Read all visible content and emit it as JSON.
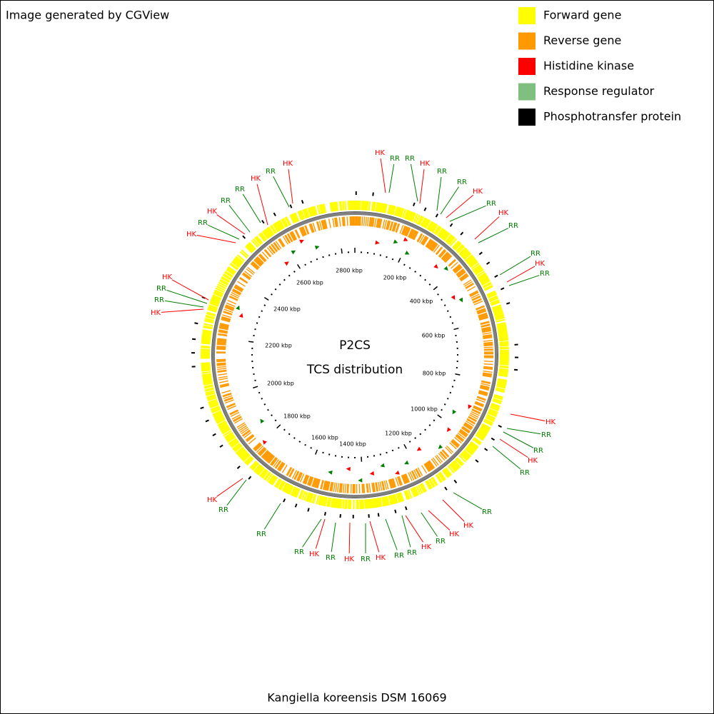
{
  "header": {
    "title": "Image generated by CGView"
  },
  "legend": [
    {
      "label": "Forward gene",
      "color": "#ffff00"
    },
    {
      "label": "Reverse gene",
      "color": "#ff9900"
    },
    {
      "label": "Histidine kinase",
      "color": "#ff0000"
    },
    {
      "label": "Response regulator",
      "color": "#7fbf7f"
    },
    {
      "label": "Phosphotransfer protein",
      "color": "#000000"
    }
  ],
  "center": {
    "title": "P2CS",
    "subtitle": "TCS distribution"
  },
  "scale_labels": [
    "200 kbp",
    "400 kbp",
    "600 kbp",
    "800 kbp",
    "1000 kbp",
    "1200 kbp",
    "1400 kbp",
    "1600 kbp",
    "1800 kbp",
    "2000 kbp",
    "2200 kbp",
    "2400 kbp",
    "2600 kbp",
    "2800 kbp"
  ],
  "feature_labels": [
    {
      "text": "HK",
      "color": "#ff0000"
    },
    {
      "text": "RR",
      "color": "#008000"
    },
    {
      "text": "RR",
      "color": "#008000"
    },
    {
      "text": "HK",
      "color": "#ff0000"
    },
    {
      "text": "RR",
      "color": "#008000"
    },
    {
      "text": "RR",
      "color": "#008000"
    },
    {
      "text": "HK",
      "color": "#ff0000"
    },
    {
      "text": "RR",
      "color": "#008000"
    },
    {
      "text": "HK",
      "color": "#ff0000"
    },
    {
      "text": "RR",
      "color": "#008000"
    },
    {
      "text": "RR",
      "color": "#008000"
    },
    {
      "text": "HK",
      "color": "#ff0000"
    },
    {
      "text": "RR",
      "color": "#008000"
    },
    {
      "text": "HK",
      "color": "#ff0000"
    },
    {
      "text": "RR",
      "color": "#008000"
    },
    {
      "text": "RR",
      "color": "#008000"
    },
    {
      "text": "HK",
      "color": "#ff0000"
    },
    {
      "text": "RR",
      "color": "#008000"
    },
    {
      "text": "RR",
      "color": "#008000"
    },
    {
      "text": "HK",
      "color": "#ff0000"
    },
    {
      "text": "HK",
      "color": "#ff0000"
    },
    {
      "text": "RR",
      "color": "#008000"
    },
    {
      "text": "HK",
      "color": "#ff0000"
    },
    {
      "text": "RR",
      "color": "#008000"
    },
    {
      "text": "RR",
      "color": "#008000"
    },
    {
      "text": "HK",
      "color": "#ff0000"
    },
    {
      "text": "RR",
      "color": "#008000"
    },
    {
      "text": "HK",
      "color": "#ff0000"
    },
    {
      "text": "RR",
      "color": "#008000"
    },
    {
      "text": "HK",
      "color": "#ff0000"
    },
    {
      "text": "RR",
      "color": "#008000"
    },
    {
      "text": "RR",
      "color": "#008000"
    },
    {
      "text": "RR",
      "color": "#008000"
    },
    {
      "text": "HK",
      "color": "#ff0000"
    },
    {
      "text": "HK",
      "color": "#ff0000"
    },
    {
      "text": "RR",
      "color": "#008000"
    },
    {
      "text": "RR",
      "color": "#008000"
    },
    {
      "text": "HK",
      "color": "#ff0000"
    },
    {
      "text": "HK",
      "color": "#ff0000"
    },
    {
      "text": "RR",
      "color": "#008000"
    },
    {
      "text": "HK",
      "color": "#ff0000"
    },
    {
      "text": "RR",
      "color": "#008000"
    },
    {
      "text": "RR",
      "color": "#008000"
    },
    {
      "text": "HK",
      "color": "#ff0000"
    },
    {
      "text": "RR",
      "color": "#008000"
    },
    {
      "text": "HK",
      "color": "#ff0000"
    }
  ],
  "footer": {
    "title": "Kangiella koreensis DSM 16069"
  }
}
